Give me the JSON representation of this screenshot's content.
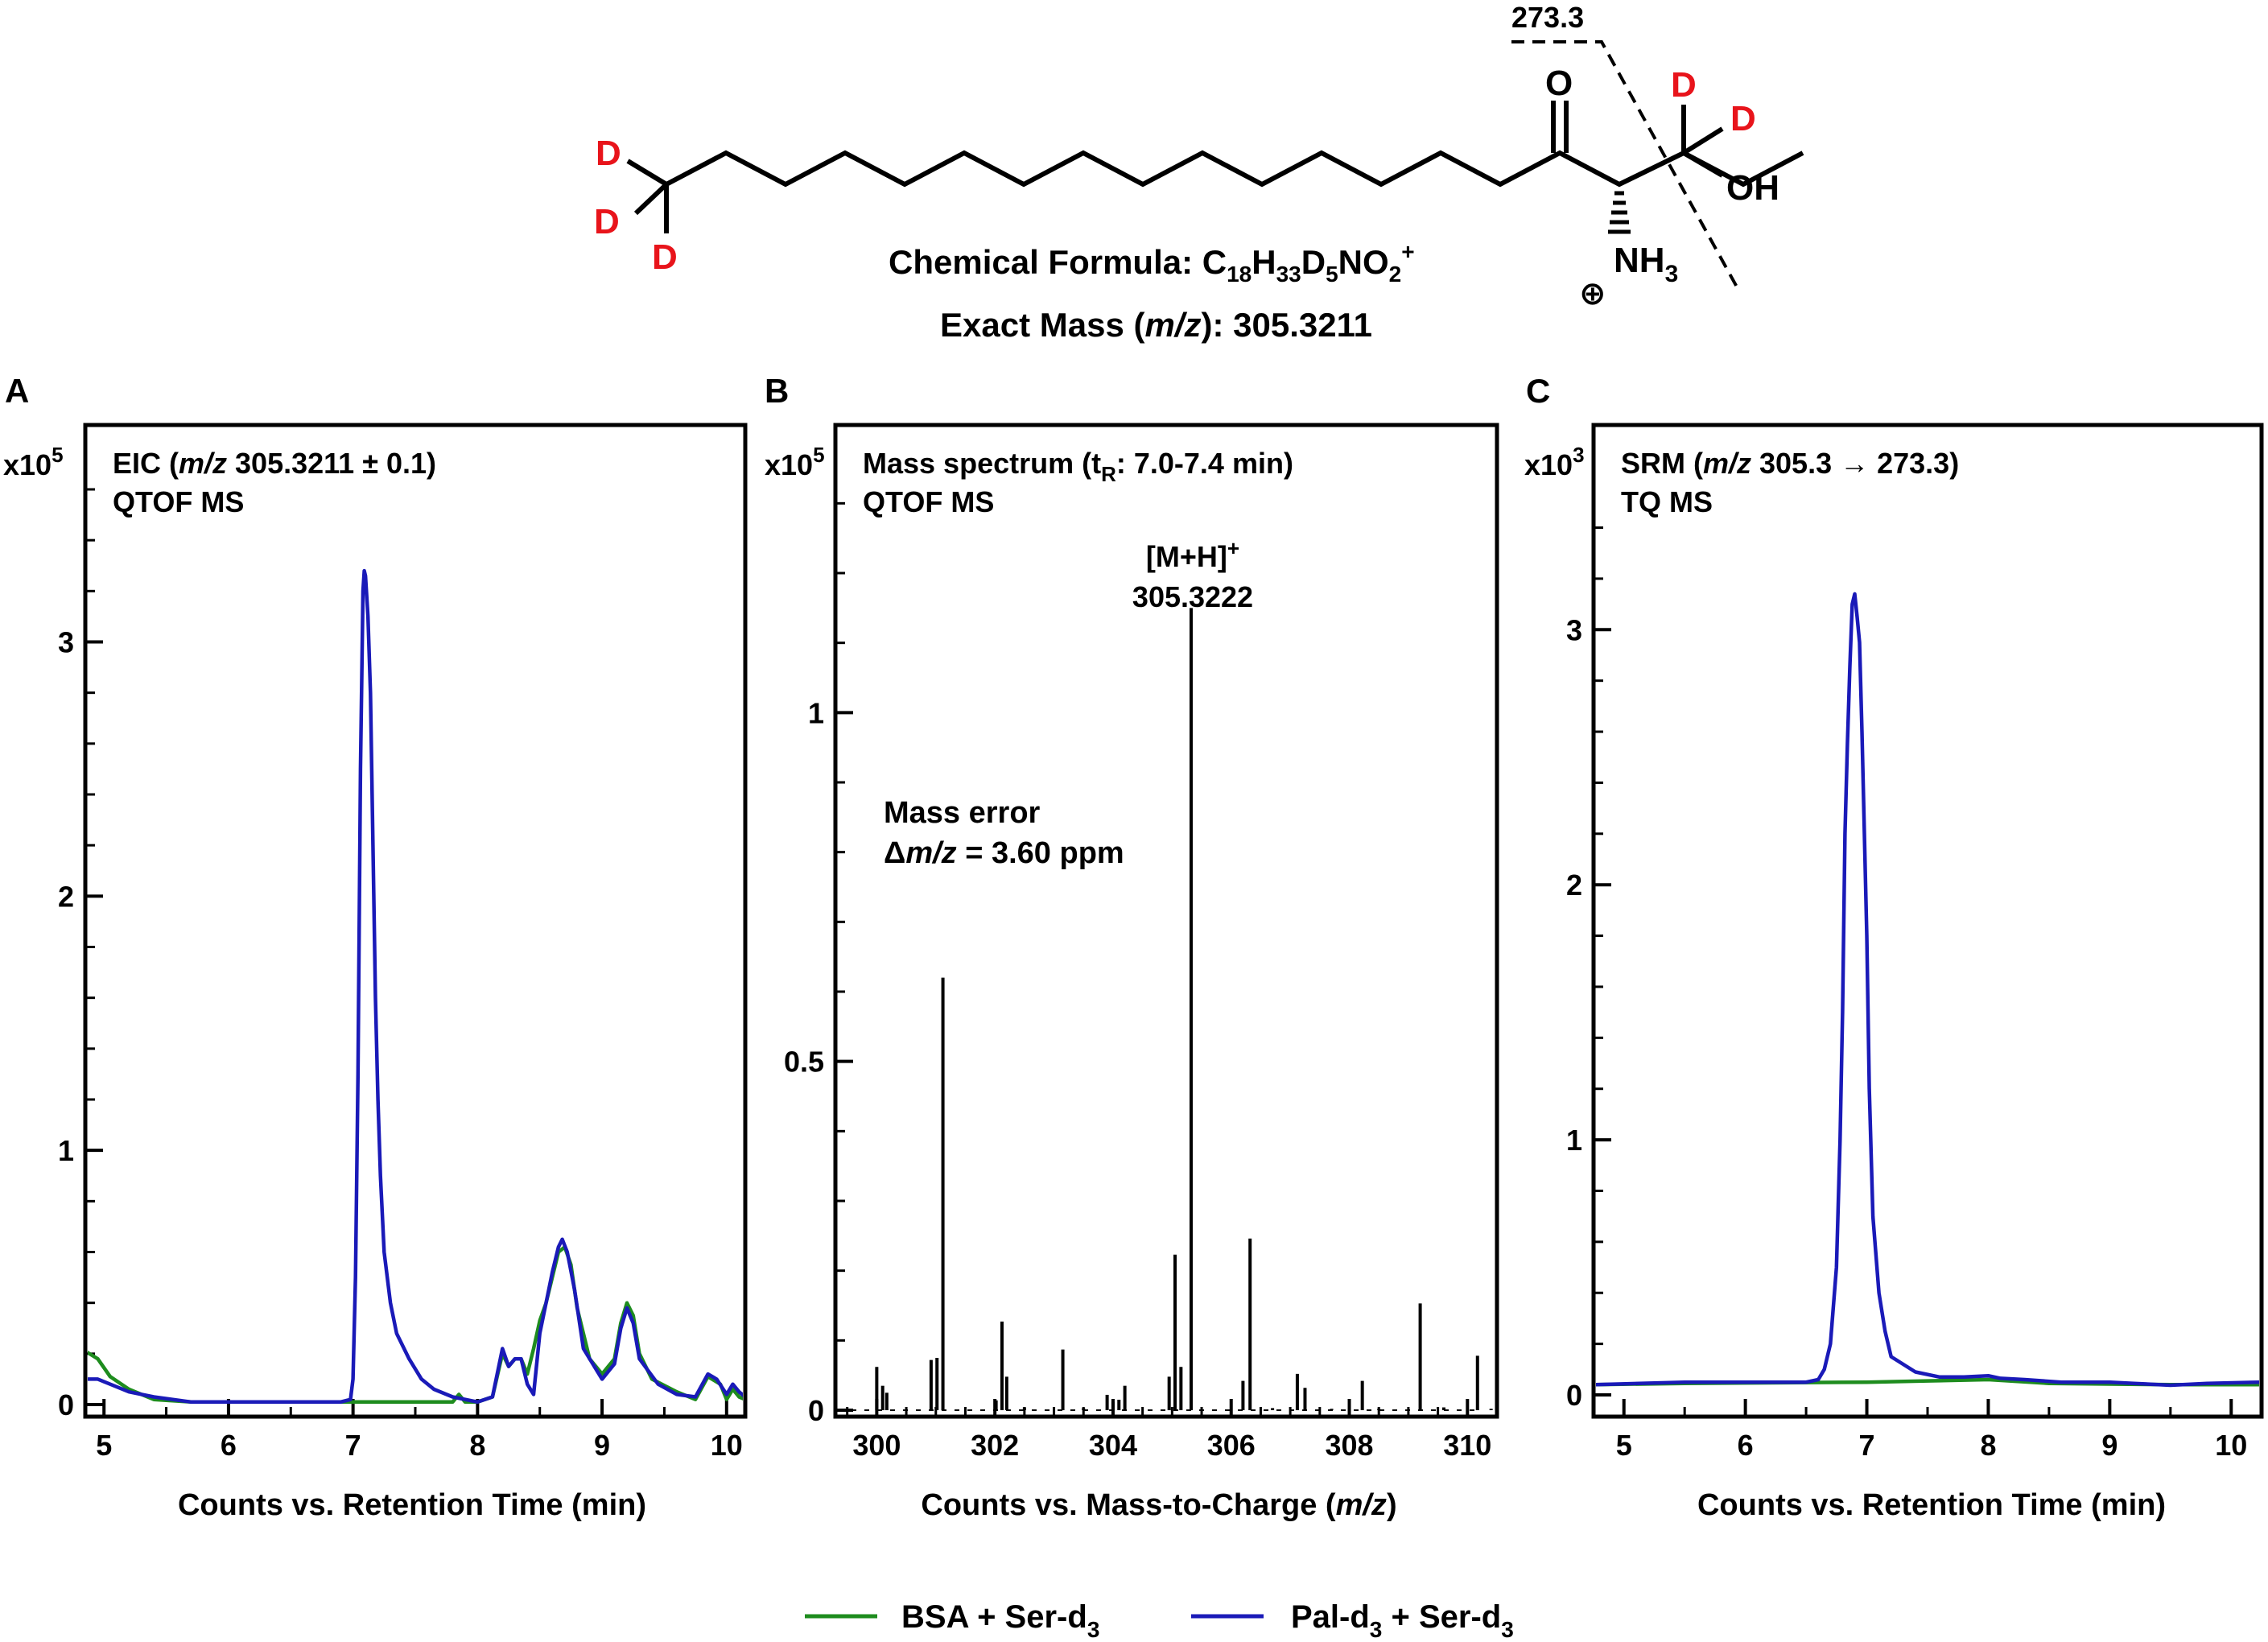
{
  "structure": {
    "formula_label": "Chemical Formula: C",
    "formula_sub1": "18",
    "formula_h": "H",
    "formula_sub2": "33",
    "formula_d": "D",
    "formula_sub3": "5",
    "formula_no": "NO",
    "formula_sub4": "2",
    "formula_sup": "+",
    "exact_mass_prefix": "Exact Mass (",
    "exact_mass_unit": "m/z",
    "exact_mass_suffix": "): 305.3211",
    "fragment_label": "273.3",
    "atom_O": "O",
    "atom_OH": "OH",
    "atom_N": "NH",
    "atom_N_sub": "3",
    "charge_symbol": "⊕",
    "deuterium": "D",
    "colors": {
      "deuterium": "#e8141b",
      "bond": "#000000"
    }
  },
  "panels": {
    "A": {
      "letter": "A",
      "multiplier": "x10",
      "multiplier_exp": "5",
      "title_prefix": "EIC (",
      "title_unit": "m/z",
      "title_suffix": " 305.3211 ± 0.1)",
      "subtitle": "QTOF MS",
      "xlabel": "Counts vs. Retention Time (min)",
      "xticks": [
        "5",
        "6",
        "7",
        "8",
        "9",
        "10"
      ],
      "yticks": [
        "0",
        "1",
        "2",
        "3"
      ]
    },
    "B": {
      "letter": "B",
      "multiplier": "x10",
      "multiplier_exp": "5",
      "title_prefix": "Mass spectrum (t",
      "title_sub": "R",
      "title_suffix": ": 7.0-7.4 min)",
      "subtitle": "QTOF MS",
      "xlabel_prefix": "Counts vs. Mass-to-Charge (",
      "xlabel_unit": "m/z",
      "xlabel_suffix": ")",
      "xticks": [
        "300",
        "302",
        "304",
        "306",
        "308",
        "310"
      ],
      "yticks": [
        "0",
        "0.5",
        "1"
      ],
      "peak_label_ion": "[M+H]",
      "peak_label_sup": "+",
      "peak_label_mz": "305.3222",
      "mass_error_title": "Mass error",
      "mass_error_delta": "Δ",
      "mass_error_unit": "m/z",
      "mass_error_value": " = 3.60 ppm"
    },
    "C": {
      "letter": "C",
      "multiplier": "x10",
      "multiplier_exp": "3",
      "title_prefix": "SRM (",
      "title_unit": "m/z",
      "title_suffix": " 305.3 → 273.3)",
      "subtitle": "TQ MS",
      "xlabel": "Counts vs. Retention Time (min)",
      "xticks": [
        "5",
        "6",
        "7",
        "8",
        "9",
        "10"
      ],
      "yticks": [
        "0",
        "1",
        "2",
        "3"
      ]
    }
  },
  "legend": {
    "bsa_prefix": "BSA + Ser-d",
    "bsa_sub": "3",
    "pal_prefix": "Pal-d",
    "pal_sub": "3",
    "pal_mid": " + Ser-d",
    "pal_sub2": "3"
  },
  "colors": {
    "bsa": "#1e8c1e",
    "pal": "#1a1ab8",
    "spectrum": "#000000"
  },
  "chart_data": [
    {
      "type": "line",
      "panel": "A",
      "xlim": [
        4.85,
        10.15
      ],
      "ylim": [
        0,
        3.6
      ],
      "y_multiplier": "x10^5",
      "series": [
        {
          "name": "BSA + Ser-d3",
          "color": "#1e8c1e",
          "points": [
            [
              4.85,
              0.21
            ],
            [
              4.95,
              0.18
            ],
            [
              5.05,
              0.11
            ],
            [
              5.2,
              0.06
            ],
            [
              5.4,
              0.02
            ],
            [
              5.7,
              0.01
            ],
            [
              6.2,
              0.01
            ],
            [
              6.9,
              0.01
            ],
            [
              7.5,
              0.01
            ],
            [
              7.8,
              0.01
            ],
            [
              7.85,
              0.04
            ],
            [
              7.9,
              0.01
            ],
            [
              8.0,
              0.01
            ],
            [
              8.12,
              0.03
            ],
            [
              8.2,
              0.2
            ],
            [
              8.25,
              0.15
            ],
            [
              8.3,
              0.18
            ],
            [
              8.35,
              0.18
            ],
            [
              8.4,
              0.12
            ],
            [
              8.45,
              0.22
            ],
            [
              8.5,
              0.33
            ],
            [
              8.55,
              0.4
            ],
            [
              8.6,
              0.5
            ],
            [
              8.65,
              0.6
            ],
            [
              8.7,
              0.62
            ],
            [
              8.75,
              0.55
            ],
            [
              8.8,
              0.38
            ],
            [
              8.9,
              0.18
            ],
            [
              9.0,
              0.12
            ],
            [
              9.1,
              0.18
            ],
            [
              9.15,
              0.32
            ],
            [
              9.2,
              0.4
            ],
            [
              9.25,
              0.35
            ],
            [
              9.3,
              0.2
            ],
            [
              9.4,
              0.1
            ],
            [
              9.6,
              0.05
            ],
            [
              9.75,
              0.02
            ],
            [
              9.85,
              0.11
            ],
            [
              9.95,
              0.08
            ],
            [
              10.0,
              0.02
            ],
            [
              10.05,
              0.06
            ],
            [
              10.1,
              0.03
            ],
            [
              10.15,
              0.02
            ]
          ]
        },
        {
          "name": "Pal-d3 + Ser-d3",
          "color": "#1a1ab8",
          "points": [
            [
              4.85,
              0.1
            ],
            [
              4.95,
              0.1
            ],
            [
              5.05,
              0.08
            ],
            [
              5.2,
              0.05
            ],
            [
              5.4,
              0.03
            ],
            [
              5.7,
              0.01
            ],
            [
              6.2,
              0.01
            ],
            [
              6.9,
              0.01
            ],
            [
              6.98,
              0.02
            ],
            [
              7.0,
              0.1
            ],
            [
              7.02,
              0.5
            ],
            [
              7.04,
              1.3
            ],
            [
              7.06,
              2.5
            ],
            [
              7.08,
              3.2
            ],
            [
              7.09,
              3.28
            ],
            [
              7.1,
              3.26
            ],
            [
              7.12,
              3.1
            ],
            [
              7.14,
              2.8
            ],
            [
              7.16,
              2.2
            ],
            [
              7.18,
              1.6
            ],
            [
              7.2,
              1.2
            ],
            [
              7.22,
              0.9
            ],
            [
              7.25,
              0.6
            ],
            [
              7.3,
              0.4
            ],
            [
              7.35,
              0.28
            ],
            [
              7.45,
              0.18
            ],
            [
              7.55,
              0.1
            ],
            [
              7.65,
              0.06
            ],
            [
              7.8,
              0.03
            ],
            [
              8.0,
              0.01
            ],
            [
              8.12,
              0.03
            ],
            [
              8.2,
              0.22
            ],
            [
              8.25,
              0.15
            ],
            [
              8.3,
              0.18
            ],
            [
              8.35,
              0.18
            ],
            [
              8.4,
              0.08
            ],
            [
              8.45,
              0.04
            ],
            [
              8.5,
              0.28
            ],
            [
              8.55,
              0.4
            ],
            [
              8.6,
              0.52
            ],
            [
              8.65,
              0.62
            ],
            [
              8.68,
              0.65
            ],
            [
              8.72,
              0.6
            ],
            [
              8.78,
              0.45
            ],
            [
              8.85,
              0.22
            ],
            [
              9.0,
              0.1
            ],
            [
              9.1,
              0.16
            ],
            [
              9.15,
              0.3
            ],
            [
              9.2,
              0.38
            ],
            [
              9.25,
              0.32
            ],
            [
              9.3,
              0.18
            ],
            [
              9.45,
              0.08
            ],
            [
              9.6,
              0.04
            ],
            [
              9.75,
              0.03
            ],
            [
              9.85,
              0.12
            ],
            [
              9.92,
              0.1
            ],
            [
              10.0,
              0.04
            ],
            [
              10.05,
              0.08
            ],
            [
              10.1,
              0.05
            ],
            [
              10.15,
              0.03
            ]
          ]
        }
      ]
    },
    {
      "type": "bar",
      "panel": "B",
      "xlim": [
        299.3,
        310.5
      ],
      "ylim": [
        0,
        1.32
      ],
      "y_multiplier": "x10^5",
      "color": "#000000",
      "peaks": [
        [
          299.5,
          0.002
        ],
        [
          300.0,
          0.062
        ],
        [
          300.1,
          0.035
        ],
        [
          300.17,
          0.025
        ],
        [
          300.92,
          0.072
        ],
        [
          301.02,
          0.075
        ],
        [
          301.12,
          0.62
        ],
        [
          302.02,
          0.014
        ],
        [
          302.12,
          0.127
        ],
        [
          302.2,
          0.048
        ],
        [
          302.5,
          0.004
        ],
        [
          303.15,
          0.087
        ],
        [
          303.5,
          0.003
        ],
        [
          303.9,
          0.022
        ],
        [
          304.0,
          0.012
        ],
        [
          304.1,
          0.015
        ],
        [
          304.2,
          0.035
        ],
        [
          304.95,
          0.048
        ],
        [
          305.05,
          0.223
        ],
        [
          305.15,
          0.062
        ],
        [
          305.3222,
          1.15
        ],
        [
          306.2,
          0.042
        ],
        [
          306.32,
          0.246
        ],
        [
          306.7,
          0.003
        ],
        [
          307.12,
          0.052
        ],
        [
          307.25,
          0.032
        ],
        [
          307.7,
          0.002
        ],
        [
          308.22,
          0.042
        ],
        [
          308.5,
          0.002
        ],
        [
          309.2,
          0.153
        ],
        [
          309.6,
          0.004
        ],
        [
          310.17,
          0.078
        ],
        [
          310.4,
          0.002
        ]
      ]
    },
    {
      "type": "line",
      "panel": "C",
      "xlim": [
        4.75,
        10.25
      ],
      "ylim": [
        0,
        3.55
      ],
      "y_multiplier": "x10^3",
      "series": [
        {
          "name": "BSA + Ser-d3",
          "color": "#1e8c1e",
          "points": [
            [
              4.75,
              0.04
            ],
            [
              5.5,
              0.045
            ],
            [
              7.0,
              0.05
            ],
            [
              7.5,
              0.055
            ],
            [
              8.0,
              0.06
            ],
            [
              8.5,
              0.045
            ],
            [
              9.5,
              0.04
            ],
            [
              10.25,
              0.04
            ]
          ]
        },
        {
          "name": "Pal-d3 + Ser-d3",
          "color": "#1a1ab8",
          "points": [
            [
              4.75,
              0.04
            ],
            [
              5.5,
              0.05
            ],
            [
              6.5,
              0.05
            ],
            [
              6.6,
              0.06
            ],
            [
              6.65,
              0.1
            ],
            [
              6.7,
              0.2
            ],
            [
              6.75,
              0.5
            ],
            [
              6.78,
              1.0
            ],
            [
              6.8,
              1.5
            ],
            [
              6.82,
              2.2
            ],
            [
              6.84,
              2.55
            ],
            [
              6.86,
              2.85
            ],
            [
              6.88,
              3.1
            ],
            [
              6.9,
              3.14
            ],
            [
              6.92,
              3.05
            ],
            [
              6.94,
              2.95
            ],
            [
              6.96,
              2.6
            ],
            [
              6.98,
              2.2
            ],
            [
              7.0,
              1.8
            ],
            [
              7.02,
              1.2
            ],
            [
              7.05,
              0.7
            ],
            [
              7.1,
              0.4
            ],
            [
              7.15,
              0.25
            ],
            [
              7.2,
              0.15
            ],
            [
              7.3,
              0.12
            ],
            [
              7.4,
              0.09
            ],
            [
              7.6,
              0.07
            ],
            [
              7.8,
              0.07
            ],
            [
              8.0,
              0.075
            ],
            [
              8.1,
              0.065
            ],
            [
              8.3,
              0.06
            ],
            [
              8.6,
              0.05
            ],
            [
              9.0,
              0.05
            ],
            [
              9.2,
              0.045
            ],
            [
              9.5,
              0.038
            ],
            [
              9.8,
              0.045
            ],
            [
              10.25,
              0.05
            ]
          ]
        }
      ]
    }
  ]
}
